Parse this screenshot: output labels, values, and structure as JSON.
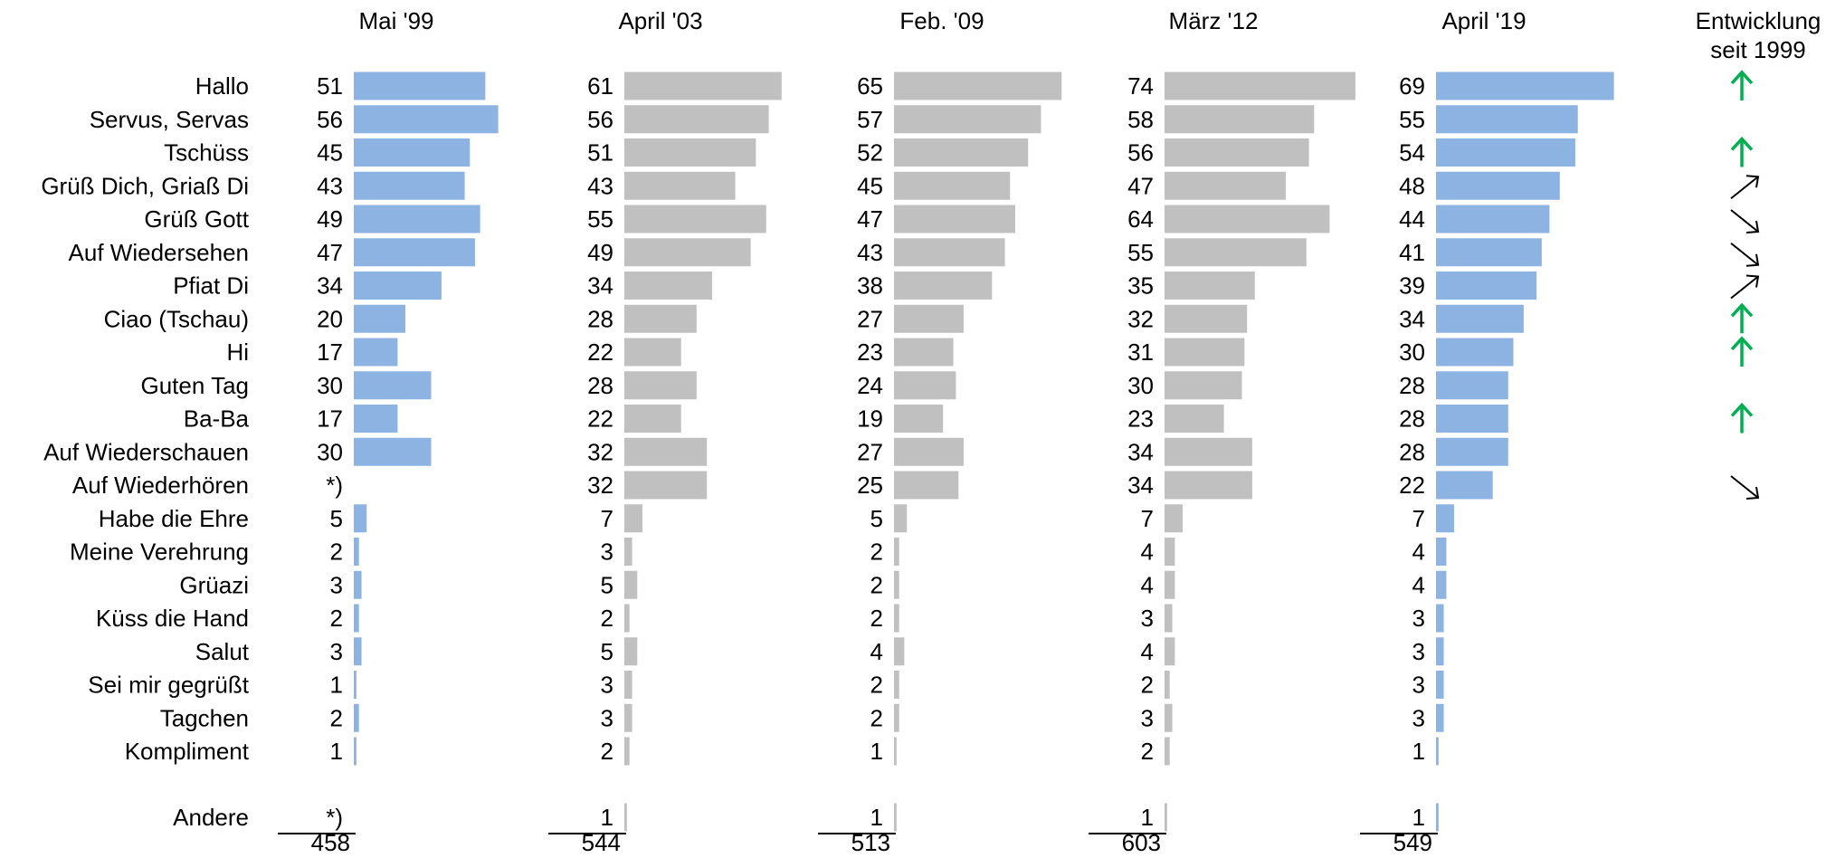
{
  "chart_data": {
    "type": "bar",
    "orientation": "horizontal",
    "title": "",
    "trend_header": "Entwicklung seit 1999",
    "categories": [
      "Hallo",
      "Servus, Servas",
      "Tschüss",
      "Grüß Dich, Griaß Di",
      "Grüß Gott",
      "Auf Wiedersehen",
      "Pfiat Di",
      "Ciao (Tschau)",
      "Hi",
      "Guten Tag",
      "Ba-Ba",
      "Auf Wiederschauen",
      "Auf Wiederhören",
      "Habe die Ehre",
      "Meine Verehrung",
      "Grüazi",
      "Küss die Hand",
      "Salut",
      "Sei mir gegrüßt",
      "Tagchen",
      "Kompliment"
    ],
    "other_label": "Andere",
    "missing_value_mark": "*)",
    "series": [
      {
        "name": "Mai '99",
        "color": "#8db3e2",
        "values": [
          51,
          56,
          45,
          43,
          49,
          47,
          34,
          20,
          17,
          30,
          17,
          30,
          null,
          5,
          2,
          3,
          2,
          3,
          1,
          2,
          1
        ],
        "other": null,
        "total": 458
      },
      {
        "name": "April '03",
        "color": "#c0c0c0",
        "values": [
          61,
          56,
          51,
          43,
          55,
          49,
          34,
          28,
          22,
          28,
          22,
          32,
          32,
          7,
          3,
          5,
          2,
          5,
          3,
          3,
          2
        ],
        "other": 1,
        "total": 544
      },
      {
        "name": "Feb. '09",
        "color": "#c0c0c0",
        "values": [
          65,
          57,
          52,
          45,
          47,
          43,
          38,
          27,
          23,
          24,
          19,
          27,
          25,
          5,
          2,
          2,
          2,
          4,
          2,
          2,
          1
        ],
        "other": 1,
        "total": 513
      },
      {
        "name": "März '12",
        "color": "#c0c0c0",
        "values": [
          74,
          58,
          56,
          47,
          64,
          55,
          35,
          32,
          31,
          30,
          23,
          34,
          34,
          7,
          4,
          4,
          3,
          4,
          2,
          3,
          2
        ],
        "other": 1,
        "total": 603
      },
      {
        "name": "April '19",
        "color": "#8db3e2",
        "values": [
          69,
          55,
          54,
          48,
          44,
          41,
          39,
          34,
          30,
          28,
          28,
          28,
          22,
          7,
          4,
          4,
          3,
          3,
          3,
          3,
          1
        ],
        "other": 1,
        "total": 549
      }
    ],
    "trends": [
      "up",
      "",
      "up",
      "up-right",
      "down-right",
      "down-right",
      "up-right",
      "up",
      "up",
      "",
      "up",
      "",
      "down-right",
      "",
      "",
      "",
      "",
      "",
      "",
      "",
      ""
    ],
    "trend_colors": {
      "up": "#00b050",
      "up-right": "#000000",
      "down-right": "#000000"
    },
    "xlim": [
      0,
      74
    ]
  }
}
